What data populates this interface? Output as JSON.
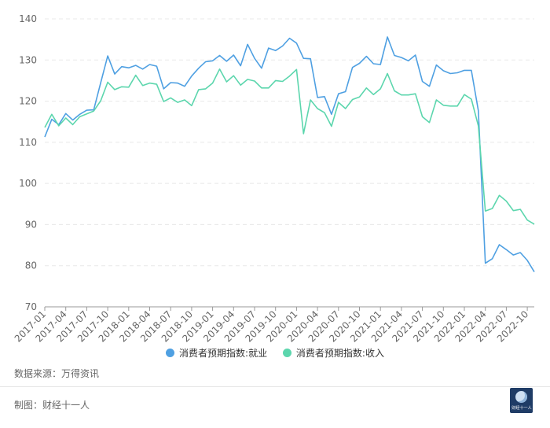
{
  "chart_data": {
    "type": "line",
    "title": "",
    "xlabel": "",
    "ylabel": "",
    "ylim": [
      70,
      140
    ],
    "yticks": [
      70,
      80,
      90,
      100,
      110,
      120,
      130,
      140
    ],
    "grid": true,
    "legend_position": "bottom-center",
    "x_tick_labels": [
      "2017-01",
      "2017-04",
      "2017-07",
      "2017-10",
      "2018-01",
      "2018-04",
      "2018-07",
      "2018-10",
      "2019-01",
      "2019-04",
      "2019-07",
      "2019-10",
      "2020-01",
      "2020-04",
      "2020-07",
      "2020-10",
      "2021-01",
      "2021-04",
      "2021-07",
      "2021-10",
      "2022-01",
      "2022-04",
      "2022-07",
      "2022-10"
    ],
    "x": [
      "2017-01",
      "2017-02",
      "2017-03",
      "2017-04",
      "2017-05",
      "2017-06",
      "2017-07",
      "2017-08",
      "2017-09",
      "2017-10",
      "2017-11",
      "2017-12",
      "2018-01",
      "2018-02",
      "2018-03",
      "2018-04",
      "2018-05",
      "2018-06",
      "2018-07",
      "2018-08",
      "2018-09",
      "2018-10",
      "2018-11",
      "2018-12",
      "2019-01",
      "2019-02",
      "2019-03",
      "2019-04",
      "2019-05",
      "2019-06",
      "2019-07",
      "2019-08",
      "2019-09",
      "2019-10",
      "2019-11",
      "2019-12",
      "2020-01",
      "2020-02",
      "2020-03",
      "2020-04",
      "2020-05",
      "2020-06",
      "2020-07",
      "2020-08",
      "2020-09",
      "2020-10",
      "2020-11",
      "2020-12",
      "2021-01",
      "2021-02",
      "2021-03",
      "2021-04",
      "2021-05",
      "2021-06",
      "2021-07",
      "2021-08",
      "2021-09",
      "2021-10",
      "2021-11",
      "2021-12",
      "2022-01",
      "2022-02",
      "2022-03",
      "2022-04",
      "2022-05",
      "2022-06",
      "2022-07",
      "2022-08",
      "2022-09",
      "2022-10",
      "2022-11"
    ],
    "series": [
      {
        "name": "消费者预期指数:就业",
        "color": "#4fa0e2",
        "values": [
          111.3,
          115.6,
          114.3,
          117.0,
          115.4,
          116.8,
          117.8,
          117.9,
          124.5,
          131.0,
          126.6,
          128.4,
          128.1,
          128.7,
          127.8,
          128.9,
          128.5,
          123.0,
          124.5,
          124.4,
          123.6,
          126.1,
          128.0,
          129.6,
          129.8,
          131.1,
          129.7,
          131.2,
          128.6,
          133.8,
          130.4,
          128.0,
          132.9,
          132.3,
          133.4,
          135.3,
          134.1,
          130.4,
          130.3,
          120.9,
          121.1,
          116.8,
          121.8,
          122.3,
          128.2,
          129.2,
          130.9,
          129.1,
          128.9,
          135.6,
          131.1,
          130.6,
          129.8,
          131.2,
          124.8,
          123.6,
          128.8,
          127.4,
          126.7,
          126.9,
          127.5,
          127.5,
          117.7,
          80.6,
          81.7,
          85.1,
          83.9,
          82.6,
          83.2,
          81.3,
          78.5
        ]
      },
      {
        "name": "消费者预期指数:收入",
        "color": "#5cd6ad",
        "values": [
          113.6,
          116.8,
          114.0,
          115.9,
          114.3,
          116.2,
          116.9,
          117.6,
          120.1,
          124.6,
          122.8,
          123.5,
          123.4,
          126.3,
          123.8,
          124.4,
          124.1,
          119.9,
          120.8,
          119.7,
          120.3,
          118.9,
          122.8,
          123.0,
          124.4,
          127.8,
          124.7,
          126.2,
          123.9,
          125.3,
          124.9,
          123.2,
          123.2,
          125.0,
          124.8,
          126.1,
          127.7,
          112.1,
          120.3,
          118.2,
          117.2,
          113.9,
          119.7,
          118.2,
          120.4,
          121.0,
          123.2,
          121.6,
          123.0,
          126.7,
          122.5,
          121.5,
          121.5,
          121.8,
          116.2,
          114.8,
          120.3,
          119.0,
          118.8,
          118.8,
          121.6,
          120.5,
          114.0,
          93.3,
          93.9,
          97.1,
          95.7,
          93.4,
          93.7,
          91.1,
          90.1
        ]
      }
    ]
  },
  "legend": {
    "employment": "消费者预期指数:就业",
    "income": "消费者预期指数:收入"
  },
  "source_text": "数据来源：万得资讯",
  "credit_text": "制图：财经十一人",
  "logo_text": "财经十一人"
}
